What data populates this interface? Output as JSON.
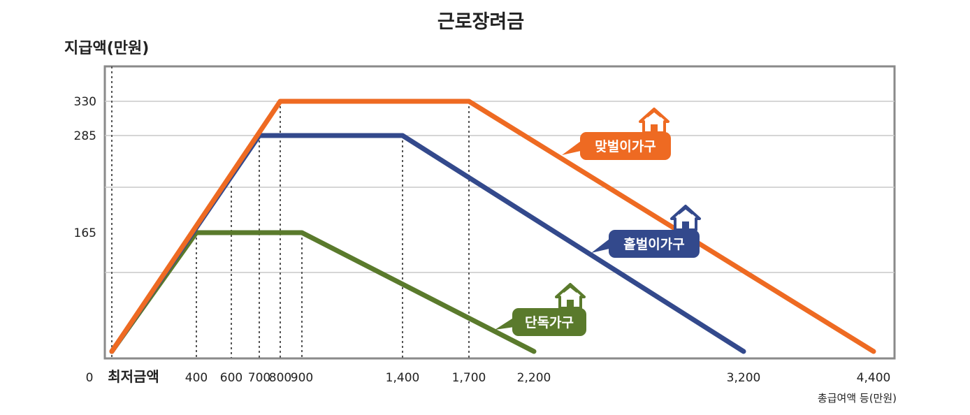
{
  "chart_data": {
    "type": "line",
    "title": "근로장려금",
    "ylabel": "지급액(만원)",
    "xlabel": "총급여액 등(만원)",
    "origin_label": "0",
    "x_ticks": [
      "최저금액",
      "400",
      "600",
      "700",
      "800",
      "900",
      "1,400",
      "1,700",
      "2,200",
      "3,200",
      "4,400"
    ],
    "x_tick_values": [
      0,
      400,
      600,
      700,
      800,
      900,
      1400,
      1700,
      2200,
      3200,
      4400
    ],
    "y_ticks": [
      "330",
      "285",
      "165"
    ],
    "y_tick_values": [
      330,
      285,
      165
    ],
    "grid": true,
    "series": [
      {
        "name": "단독가구",
        "color": "#5a7a2c",
        "x": [
          0,
          400,
          900,
          2200
        ],
        "y": [
          0,
          165,
          165,
          0
        ]
      },
      {
        "name": "홑벌이가구",
        "color": "#33498c",
        "x": [
          0,
          700,
          1400,
          3200
        ],
        "y": [
          0,
          285,
          285,
          0
        ]
      },
      {
        "name": "맞벌이가구",
        "color": "#ee6a22",
        "x": [
          0,
          800,
          1700,
          4400
        ],
        "y": [
          0,
          330,
          330,
          0
        ]
      }
    ],
    "icon": "house-icon"
  }
}
